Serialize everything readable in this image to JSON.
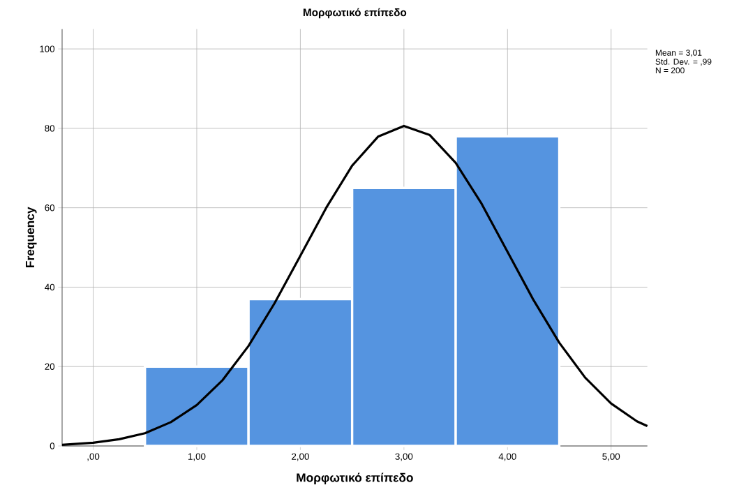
{
  "chart_data": {
    "type": "histogram",
    "title": "Μορφωτικό επίπεδο",
    "xlabel": "Μορφωτικό επίπεδο",
    "ylabel": "Frequency",
    "bins": [
      0.5,
      1.5,
      2.5,
      3.5,
      4.5
    ],
    "values": [
      20,
      37,
      65,
      78
    ],
    "color": "#5594e0",
    "series": [
      {
        "type": "line",
        "color": "#000000",
        "x": [
          -0.3,
          0,
          0.25,
          0.5,
          0.75,
          1,
          1.25,
          1.5,
          1.75,
          2,
          2.25,
          2.5,
          2.75,
          3,
          3.25,
          3.5,
          3.75,
          4,
          4.25,
          4.5,
          4.75,
          5,
          5.25,
          5.35
        ],
        "values": [
          0.3,
          0.8,
          1.7,
          3.2,
          6,
          10.3,
          16.6,
          25.2,
          35.9,
          47.9,
          60,
          70.6,
          77.9,
          80.6,
          78.3,
          71.3,
          61,
          48.9,
          36.8,
          26,
          17.2,
          10.7,
          6.2,
          5
        ]
      }
    ],
    "xlim": [
      -0.3,
      5.35
    ],
    "ylim": [
      0,
      105
    ],
    "xticks": [
      {
        "value": 0,
        "label": ",00"
      },
      {
        "value": 1,
        "label": "1,00"
      },
      {
        "value": 2,
        "label": "2,00"
      },
      {
        "value": 3,
        "label": "3,00"
      },
      {
        "value": 4,
        "label": "4,00"
      },
      {
        "value": 5,
        "label": "5,00"
      }
    ],
    "yticks": [
      0,
      20,
      40,
      60,
      80,
      100
    ],
    "grid": true,
    "annotations": [
      "Mean = 3,01",
      "Std. Dev. = ,99",
      "N = 200"
    ]
  }
}
